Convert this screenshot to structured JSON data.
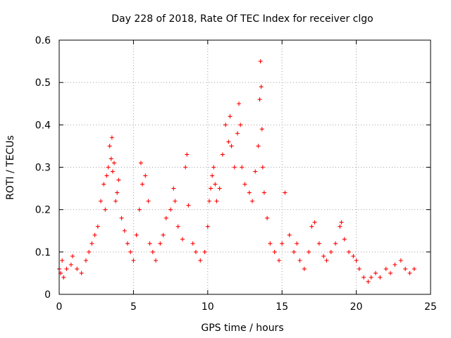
{
  "chart_data": {
    "type": "scatter",
    "title": "Day 228 of 2018, Rate Of TEC Index for receiver clgo",
    "xlabel": "GPS time / hours",
    "ylabel": "ROTI / TECUs",
    "xlim": [
      0,
      25
    ],
    "ylim": [
      0,
      0.6
    ],
    "x_ticks": [
      0,
      5,
      10,
      15,
      20,
      25
    ],
    "x_tick_labels": [
      "0",
      "5",
      "10",
      "15",
      "20",
      "25"
    ],
    "y_ticks": [
      0,
      0.1,
      0.2,
      0.3,
      0.4,
      0.5,
      0.6
    ],
    "y_tick_labels": [
      "0",
      "0.1",
      "0.2",
      "0.3",
      "0.4",
      "0.5",
      "0.6"
    ],
    "grid": true,
    "marker": "+",
    "color": "#ff0000",
    "series": [
      {
        "name": "ROTI",
        "x": [
          0.0,
          0.1,
          0.2,
          0.3,
          0.5,
          0.8,
          0.9,
          1.2,
          1.5,
          1.8,
          2.0,
          2.2,
          2.4,
          2.6,
          2.8,
          3.0,
          3.1,
          3.2,
          3.3,
          3.4,
          3.5,
          3.55,
          3.6,
          3.7,
          3.8,
          3.9,
          4.0,
          4.2,
          4.4,
          4.6,
          4.8,
          5.0,
          5.2,
          5.4,
          5.5,
          5.6,
          5.8,
          6.0,
          6.1,
          6.3,
          6.5,
          6.8,
          7.0,
          7.2,
          7.5,
          7.7,
          7.8,
          8.0,
          8.3,
          8.5,
          8.6,
          8.7,
          9.0,
          9.2,
          9.5,
          9.8,
          10.0,
          10.1,
          10.2,
          10.3,
          10.4,
          10.5,
          10.6,
          10.8,
          11.0,
          11.2,
          11.4,
          11.5,
          11.6,
          11.8,
          12.0,
          12.1,
          12.2,
          12.3,
          12.5,
          12.8,
          13.0,
          13.2,
          13.4,
          13.5,
          13.55,
          13.6,
          13.65,
          13.7,
          13.8,
          14.0,
          14.2,
          14.5,
          14.8,
          15.0,
          15.2,
          15.5,
          15.8,
          16.0,
          16.2,
          16.5,
          16.8,
          17.0,
          17.2,
          17.5,
          17.8,
          18.0,
          18.3,
          18.6,
          18.9,
          19.0,
          19.2,
          19.5,
          19.8,
          20.0,
          20.2,
          20.5,
          20.8,
          21.0,
          21.3,
          21.6,
          22.0,
          22.3,
          22.6,
          23.0,
          23.3,
          23.6,
          23.9
        ],
        "y": [
          0.06,
          0.05,
          0.08,
          0.04,
          0.06,
          0.07,
          0.09,
          0.06,
          0.05,
          0.08,
          0.1,
          0.12,
          0.14,
          0.16,
          0.22,
          0.26,
          0.2,
          0.28,
          0.3,
          0.35,
          0.32,
          0.37,
          0.29,
          0.31,
          0.22,
          0.24,
          0.27,
          0.18,
          0.15,
          0.12,
          0.1,
          0.08,
          0.14,
          0.2,
          0.31,
          0.26,
          0.28,
          0.22,
          0.12,
          0.1,
          0.08,
          0.12,
          0.14,
          0.18,
          0.2,
          0.25,
          0.22,
          0.16,
          0.13,
          0.3,
          0.33,
          0.21,
          0.12,
          0.1,
          0.08,
          0.1,
          0.16,
          0.22,
          0.25,
          0.28,
          0.3,
          0.26,
          0.22,
          0.25,
          0.33,
          0.4,
          0.36,
          0.42,
          0.35,
          0.3,
          0.38,
          0.45,
          0.4,
          0.3,
          0.26,
          0.24,
          0.22,
          0.29,
          0.35,
          0.46,
          0.55,
          0.49,
          0.39,
          0.3,
          0.24,
          0.18,
          0.12,
          0.1,
          0.08,
          0.12,
          0.24,
          0.14,
          0.1,
          0.12,
          0.08,
          0.06,
          0.1,
          0.16,
          0.17,
          0.12,
          0.09,
          0.08,
          0.1,
          0.12,
          0.16,
          0.17,
          0.13,
          0.1,
          0.09,
          0.08,
          0.06,
          0.04,
          0.03,
          0.04,
          0.05,
          0.04,
          0.06,
          0.05,
          0.07,
          0.08,
          0.06,
          0.05,
          0.06
        ]
      }
    ],
    "legend": "none"
  }
}
